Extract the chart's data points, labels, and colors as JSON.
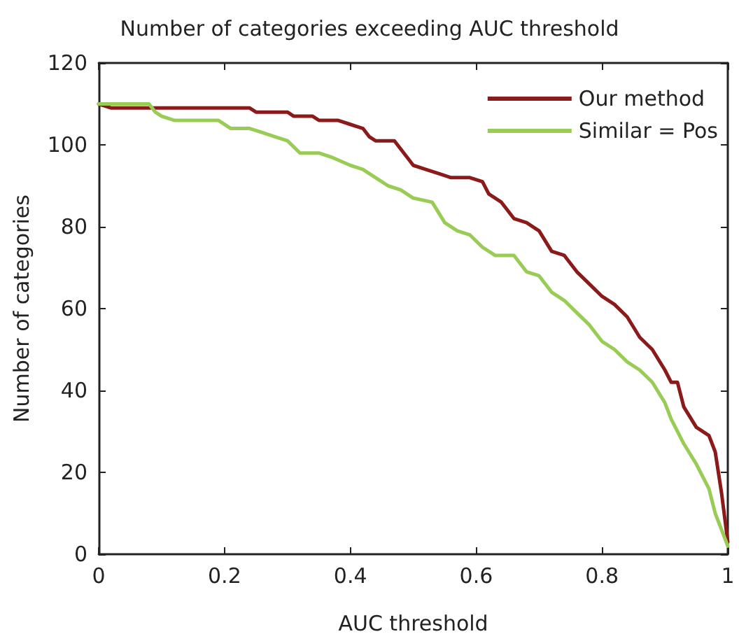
{
  "chart_data": {
    "type": "line",
    "title": "Number of categories exceeding AUC threshold",
    "xlabel": "AUC threshold",
    "ylabel": "Number of categories",
    "xlim": [
      0,
      1
    ],
    "xticks": [
      0,
      0.2,
      0.4,
      0.6,
      0.8,
      1
    ],
    "ylim": [
      0,
      120
    ],
    "yticks": [
      0,
      20,
      40,
      60,
      80,
      100,
      120
    ],
    "grid": false,
    "legend": "top right",
    "marker": "none",
    "line_style": "solid",
    "series": [
      {
        "name": "Our method",
        "color": "#8b1a1a",
        "x": [
          0,
          0.02,
          0.24,
          0.25,
          0.3,
          0.31,
          0.34,
          0.35,
          0.38,
          0.4,
          0.42,
          0.43,
          0.44,
          0.47,
          0.49,
          0.5,
          0.52,
          0.54,
          0.56,
          0.59,
          0.61,
          0.62,
          0.64,
          0.66,
          0.68,
          0.7,
          0.72,
          0.74,
          0.76,
          0.78,
          0.8,
          0.82,
          0.84,
          0.86,
          0.88,
          0.9,
          0.91,
          0.92,
          0.93,
          0.95,
          0.97,
          0.98,
          0.99,
          1.0
        ],
        "values": [
          110,
          109,
          109,
          108,
          108,
          107,
          107,
          106,
          106,
          105,
          104,
          102,
          101,
          101,
          97,
          95,
          94,
          93,
          92,
          92,
          91,
          88,
          86,
          82,
          81,
          79,
          74,
          73,
          69,
          66,
          63,
          61,
          58,
          53,
          50,
          45,
          42,
          42,
          36,
          31,
          29,
          25,
          15,
          3
        ]
      },
      {
        "name": "Similar = Pos",
        "color": "#99cc55",
        "x": [
          0,
          0.08,
          0.09,
          0.1,
          0.12,
          0.19,
          0.21,
          0.24,
          0.26,
          0.28,
          0.3,
          0.32,
          0.35,
          0.37,
          0.4,
          0.42,
          0.44,
          0.46,
          0.48,
          0.5,
          0.53,
          0.55,
          0.57,
          0.59,
          0.61,
          0.63,
          0.66,
          0.68,
          0.7,
          0.72,
          0.74,
          0.76,
          0.78,
          0.8,
          0.82,
          0.84,
          0.86,
          0.88,
          0.9,
          0.91,
          0.93,
          0.95,
          0.97,
          0.98,
          1.0
        ],
        "values": [
          110,
          110,
          108,
          107,
          106,
          106,
          104,
          104,
          103,
          102,
          101,
          98,
          98,
          97,
          95,
          94,
          92,
          90,
          89,
          87,
          86,
          81,
          79,
          78,
          75,
          73,
          73,
          69,
          68,
          64,
          62,
          59,
          56,
          52,
          50,
          47,
          45,
          42,
          37,
          33,
          27,
          22,
          16,
          10,
          2
        ]
      }
    ]
  }
}
